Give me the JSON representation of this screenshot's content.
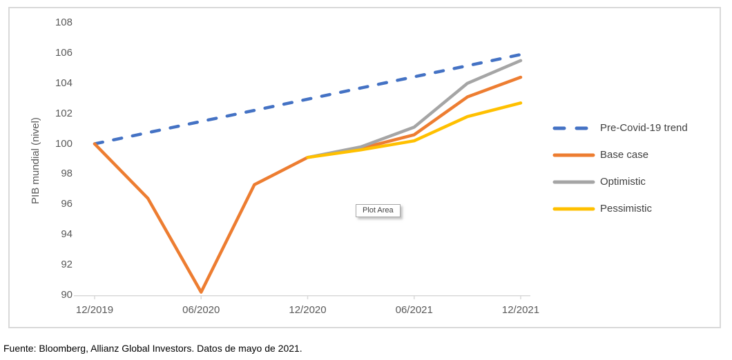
{
  "chart_data": {
    "type": "line",
    "title": "",
    "xlabel": "",
    "ylabel": "PIB mundial (nivel)",
    "ylim": [
      90,
      108
    ],
    "grid": false,
    "legend_position": "right",
    "y_ticks": [
      108,
      106,
      104,
      102,
      100,
      98,
      96,
      94,
      92,
      90
    ],
    "categories": [
      "12/2019",
      "03/2020",
      "06/2020",
      "09/2020",
      "12/2020",
      "03/2021",
      "06/2021",
      "09/2021",
      "12/2021"
    ],
    "x_tick_labels": [
      "12/2019",
      "06/2020",
      "12/2020",
      "06/2021",
      "12/2021"
    ],
    "x_tick_indices": [
      0,
      2,
      4,
      6,
      8
    ],
    "series": [
      {
        "name": "Pre-Covid-19 trend",
        "color": "#4472C4",
        "style": "dashed",
        "values": [
          100,
          100.74,
          101.48,
          102.21,
          102.95,
          103.69,
          104.43,
          105.16,
          105.9
        ]
      },
      {
        "name": "Base case",
        "color": "#ED7D31",
        "style": "solid",
        "values": [
          100,
          96.4,
          90.2,
          97.3,
          99.1,
          99.7,
          100.6,
          103.1,
          104.4
        ]
      },
      {
        "name": "Optimistic",
        "color": "#A5A5A5",
        "style": "solid",
        "values": [
          null,
          null,
          null,
          null,
          99.1,
          99.8,
          101.1,
          104.0,
          105.5
        ]
      },
      {
        "name": "Pessimistic",
        "color": "#FFC000",
        "style": "solid",
        "values": [
          null,
          null,
          null,
          null,
          99.1,
          99.6,
          100.2,
          101.8,
          102.7
        ]
      }
    ]
  },
  "plot_area_label": "Plot Area",
  "footer": "Fuente: Bloomberg, Allianz Global Investors. Datos de mayo de 2021.",
  "colors": {
    "axis_line": "#D9D9D9",
    "axis_text": "#595959",
    "frame_border": "#D9D9D9"
  }
}
